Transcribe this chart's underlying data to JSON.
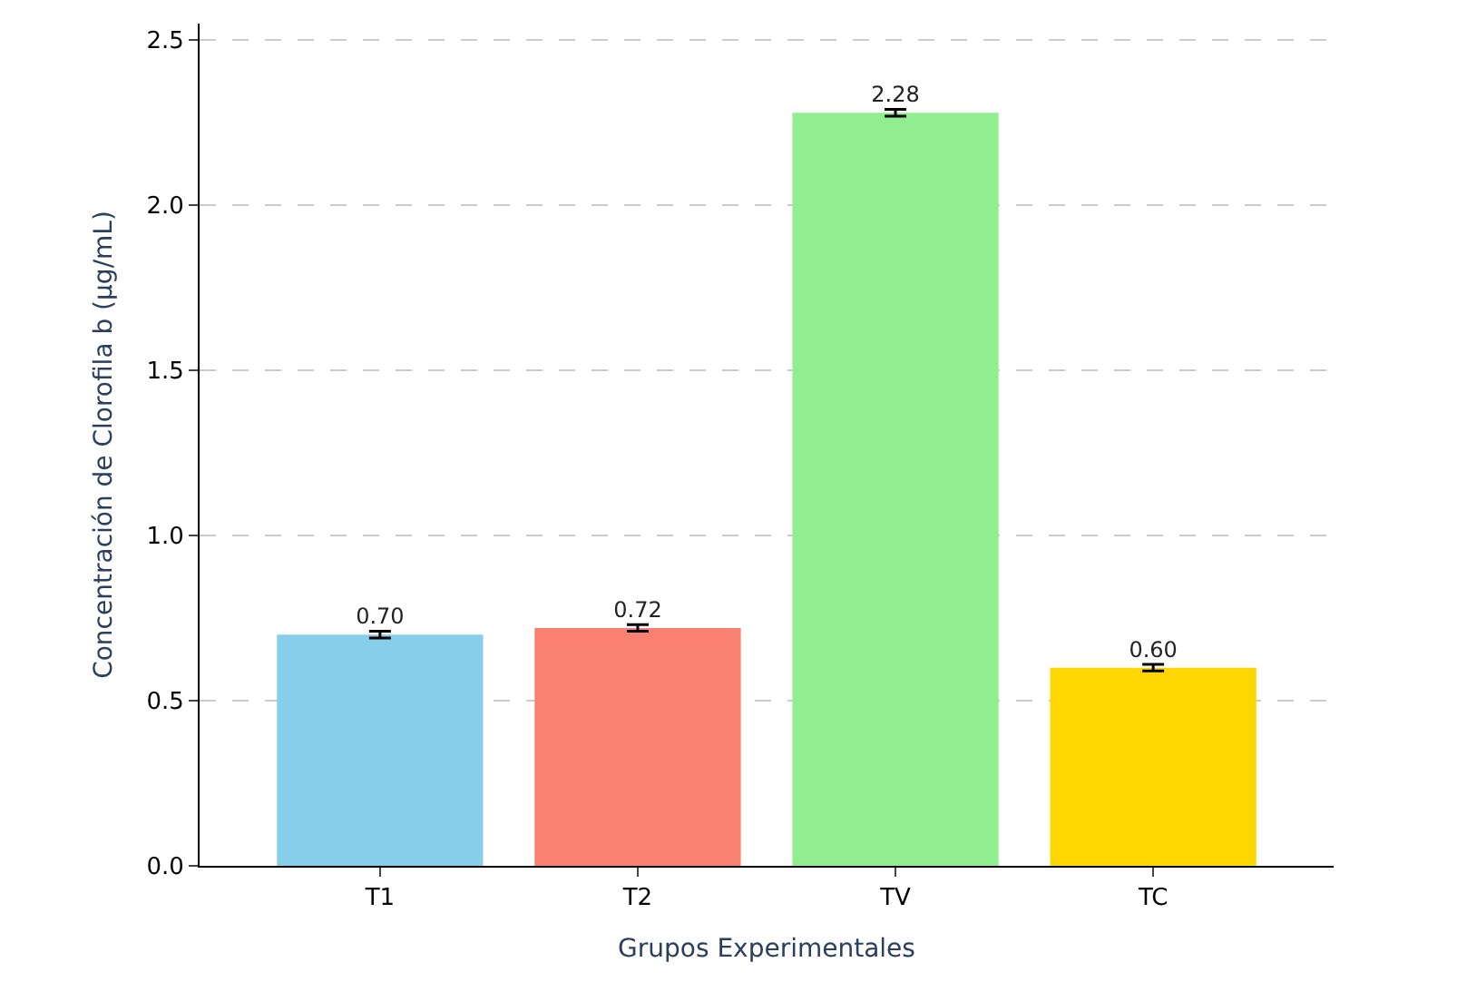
{
  "chart_data": {
    "type": "bar",
    "xlabel": "Grupos Experimentales",
    "ylabel": "Concentración de Clorofila b (μg/mL)",
    "categories": [
      "T1",
      "T2",
      "TV",
      "TC"
    ],
    "values": [
      0.7,
      0.72,
      2.28,
      0.6
    ],
    "colors": [
      "#87ceeb",
      "#fa8072",
      "#90ee90",
      "#ffd700"
    ],
    "errors": [
      0.01,
      0.01,
      0.01,
      0.01
    ],
    "value_labels": [
      "0.70",
      "0.72",
      "2.28",
      "0.60"
    ],
    "ylim": [
      0,
      2.55
    ],
    "yticks": [
      {
        "value": 0,
        "label": "0.0"
      },
      {
        "value": 0.5,
        "label": "0.5"
      },
      {
        "value": 1,
        "label": "1.0"
      },
      {
        "value": 1.5,
        "label": "1.5"
      },
      {
        "value": 2,
        "label": "2.0"
      },
      {
        "value": 2.5,
        "label": "2.5"
      }
    ],
    "grid": "y",
    "legend": false
  }
}
